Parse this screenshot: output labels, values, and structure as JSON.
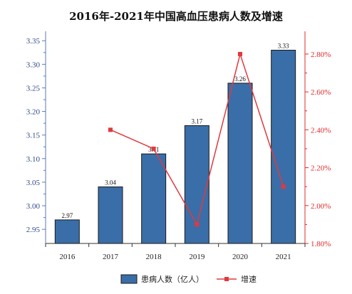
{
  "chart_data": {
    "type": "bar",
    "title": "2016年-2021年中国高血压患病人数及增速",
    "categories": [
      "2016",
      "2017",
      "2018",
      "2019",
      "2020",
      "2021"
    ],
    "series": [
      {
        "name": "患病人数（亿人）",
        "type": "bar",
        "axis": "left",
        "color": "#3a6ea8",
        "values": [
          2.97,
          3.04,
          3.11,
          3.17,
          3.26,
          3.33
        ],
        "labels": [
          "2.97",
          "3.04",
          "3.11",
          "3.17",
          "3.26",
          "3.33"
        ]
      },
      {
        "name": "增速",
        "type": "line",
        "axis": "right",
        "color": "#e0393e",
        "values": [
          null,
          2.4,
          2.3,
          1.9,
          2.8,
          2.1
        ]
      }
    ],
    "y_left": {
      "min": 2.92,
      "max": 3.37,
      "ticks": [
        2.95,
        3.0,
        3.05,
        3.1,
        3.15,
        3.2,
        3.25,
        3.3,
        3.35
      ],
      "tick_labels": [
        "2.95",
        "3.00",
        "3.05",
        "3.10",
        "3.15",
        "3.20",
        "3.25",
        "3.30",
        "3.35"
      ]
    },
    "y_right": {
      "min": 1.8,
      "max": 2.92,
      "ticks": [
        1.8,
        2.0,
        2.2,
        2.4,
        2.6,
        2.8
      ],
      "tick_labels": [
        "1.80%",
        "2.00%",
        "2.20%",
        "2.40%",
        "2.60%",
        "2.80%"
      ]
    },
    "grid": false,
    "legend_position": "bottom"
  }
}
